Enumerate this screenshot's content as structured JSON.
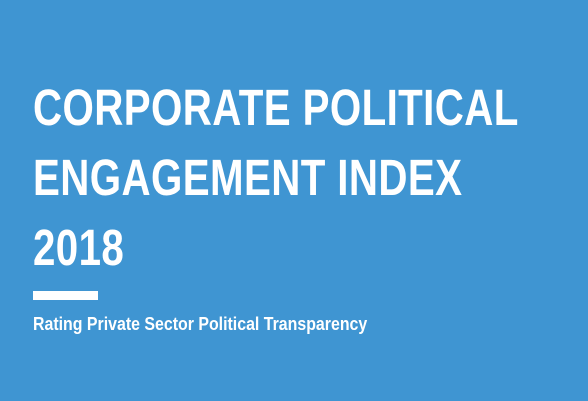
{
  "cover": {
    "title_lines": [
      "CORPORATE POLITICAL",
      "ENGAGEMENT INDEX",
      "2018"
    ],
    "subtitle": "Rating Private Sector Political Transparency"
  },
  "colors": {
    "background": "#3f95d2",
    "text": "#ffffff",
    "rule": "#ffffff"
  }
}
